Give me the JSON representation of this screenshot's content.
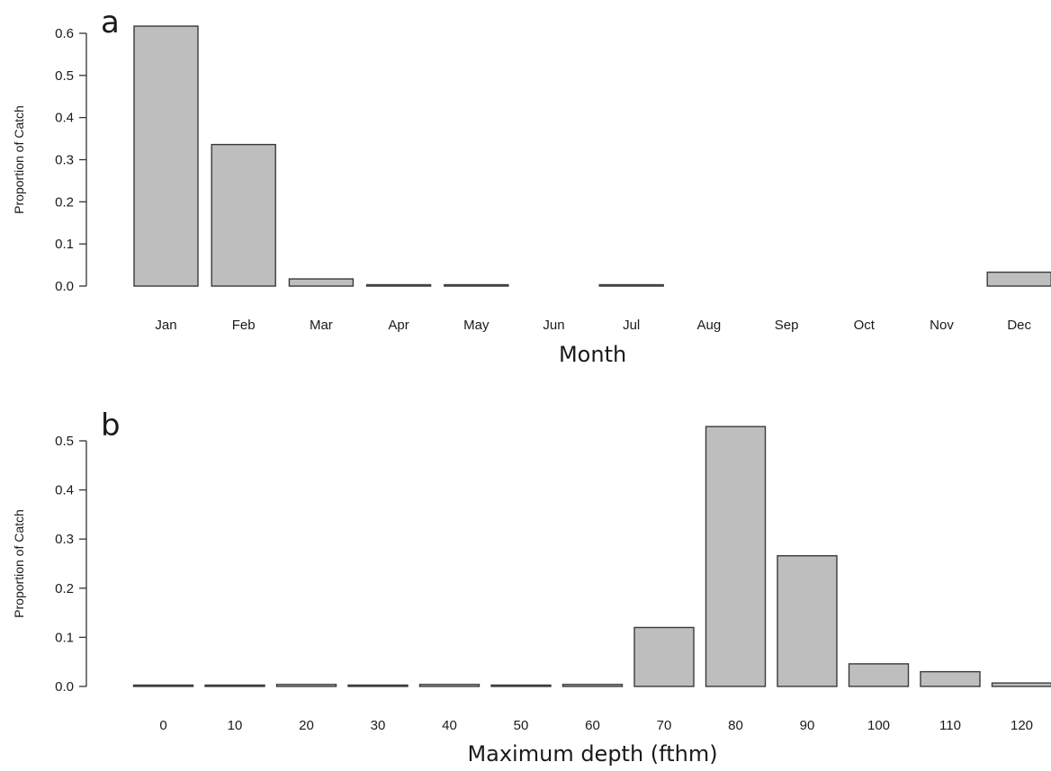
{
  "chart_data": [
    {
      "type": "bar",
      "panel_label": "a",
      "title": "",
      "xlabel": "Month",
      "ylabel": "Proportion of Catch",
      "categories": [
        "Jan",
        "Feb",
        "Mar",
        "Apr",
        "May",
        "Jun",
        "Jul",
        "Aug",
        "Sep",
        "Oct",
        "Nov",
        "Dec"
      ],
      "values": [
        0.617,
        0.336,
        0.017,
        0.002,
        0.002,
        0,
        0.002,
        0,
        0,
        0,
        0,
        0.033
      ],
      "ylim": [
        0,
        0.6
      ],
      "yticks": [
        "0.0",
        "0.1",
        "0.2",
        "0.3",
        "0.4",
        "0.5",
        "0.6"
      ],
      "bar_color": "#bebebe",
      "grid": false,
      "legend": "none"
    },
    {
      "type": "bar",
      "panel_label": "b",
      "title": "",
      "xlabel": "Maximum depth (fthm)",
      "ylabel": "Proportion of Catch",
      "categories": [
        "0",
        "10",
        "20",
        "30",
        "40",
        "50",
        "60",
        "70",
        "80",
        "90",
        "100",
        "110",
        "120"
      ],
      "values": [
        0.001,
        0.001,
        0.004,
        0.001,
        0.004,
        0.001,
        0.004,
        0.12,
        0.529,
        0.266,
        0.046,
        0.03,
        0.007
      ],
      "ylim": [
        0,
        0.5
      ],
      "yticks": [
        "0.0",
        "0.1",
        "0.2",
        "0.3",
        "0.4",
        "0.5"
      ],
      "bar_color": "#bebebe",
      "grid": false,
      "legend": "none"
    }
  ]
}
